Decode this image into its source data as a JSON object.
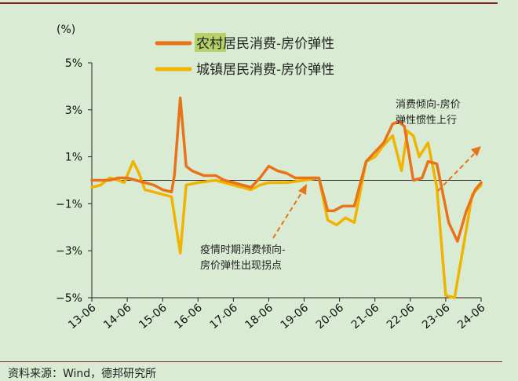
{
  "chart_data": {
    "type": "line",
    "y_unit": "(%)",
    "ylim": [
      -5,
      5
    ],
    "yticks": [
      -5,
      -3,
      -1,
      1,
      3,
      5
    ],
    "ytick_labels": [
      "−5%",
      "−3%",
      "−1%",
      "1%",
      "3%",
      "5%"
    ],
    "x_range": [
      "2013-06",
      "2024-06"
    ],
    "xtick_labels": [
      "13-06",
      "14-06",
      "15-06",
      "16-06",
      "17-06",
      "18-06",
      "19-06",
      "20-06",
      "21-06",
      "22-06",
      "23-06",
      "24-06"
    ],
    "grid": false,
    "legend_position": "top",
    "series": [
      {
        "name_highlight": "农村",
        "name_rest": "居民消费-房价弹性",
        "color": "#e8731a",
        "points": [
          [
            "2013-06",
            0.0
          ],
          [
            "2013-12",
            0.0
          ],
          [
            "2014-03",
            0.1
          ],
          [
            "2014-06",
            0.1
          ],
          [
            "2014-09",
            0.0
          ],
          [
            "2014-12",
            -0.1
          ],
          [
            "2015-03",
            -0.2
          ],
          [
            "2015-06",
            -0.4
          ],
          [
            "2015-09",
            -0.5
          ],
          [
            "2015-10",
            0.2
          ],
          [
            "2015-12",
            3.5
          ],
          [
            "2016-02",
            0.6
          ],
          [
            "2016-04",
            0.4
          ],
          [
            "2016-08",
            0.2
          ],
          [
            "2016-12",
            0.2
          ],
          [
            "2017-03",
            0.0
          ],
          [
            "2017-06",
            -0.1
          ],
          [
            "2017-12",
            -0.3
          ],
          [
            "2018-03",
            0.1
          ],
          [
            "2018-06",
            0.6
          ],
          [
            "2018-09",
            0.4
          ],
          [
            "2018-12",
            0.3
          ],
          [
            "2019-03",
            0.1
          ],
          [
            "2019-09",
            0.1
          ],
          [
            "2019-11",
            0.1
          ],
          [
            "2020-02",
            -1.3
          ],
          [
            "2020-04",
            -1.3
          ],
          [
            "2020-07",
            -1.1
          ],
          [
            "2020-11",
            -1.1
          ],
          [
            "2021-03",
            0.8
          ],
          [
            "2021-06",
            1.2
          ],
          [
            "2021-09",
            1.6
          ],
          [
            "2021-12",
            2.4
          ],
          [
            "2022-02",
            2.5
          ],
          [
            "2022-04",
            2.3
          ],
          [
            "2022-07",
            0.0
          ],
          [
            "2022-10",
            0.1
          ],
          [
            "2022-12",
            0.8
          ],
          [
            "2023-03",
            0.7
          ],
          [
            "2023-07",
            -1.8
          ],
          [
            "2023-10",
            -2.6
          ],
          [
            "2024-01",
            -1.3
          ],
          [
            "2024-04",
            -0.4
          ],
          [
            "2024-06",
            -0.1
          ]
        ]
      },
      {
        "name": "城镇居民消费-房价弹性",
        "color": "#f0b400",
        "points": [
          [
            "2013-06",
            -0.3
          ],
          [
            "2013-09",
            -0.2
          ],
          [
            "2013-12",
            0.1
          ],
          [
            "2014-03",
            0.0
          ],
          [
            "2014-05",
            -0.1
          ],
          [
            "2014-08",
            0.8
          ],
          [
            "2014-10",
            0.3
          ],
          [
            "2014-12",
            -0.4
          ],
          [
            "2015-03",
            -0.5
          ],
          [
            "2015-06",
            -0.6
          ],
          [
            "2015-09",
            -0.7
          ],
          [
            "2015-12",
            -3.1
          ],
          [
            "2016-02",
            -0.2
          ],
          [
            "2016-06",
            -0.1
          ],
          [
            "2016-12",
            0.0
          ],
          [
            "2017-06",
            -0.2
          ],
          [
            "2017-12",
            -0.4
          ],
          [
            "2018-03",
            -0.2
          ],
          [
            "2018-06",
            -0.1
          ],
          [
            "2018-12",
            -0.1
          ],
          [
            "2019-06",
            0.0
          ],
          [
            "2019-11",
            0.1
          ],
          [
            "2020-02",
            -1.7
          ],
          [
            "2020-05",
            -1.9
          ],
          [
            "2020-08",
            -1.6
          ],
          [
            "2020-11",
            -1.8
          ],
          [
            "2021-03",
            0.8
          ],
          [
            "2021-06",
            1.0
          ],
          [
            "2021-09",
            1.5
          ],
          [
            "2021-12",
            1.9
          ],
          [
            "2022-03",
            0.4
          ],
          [
            "2022-05",
            2.1
          ],
          [
            "2022-07",
            1.9
          ],
          [
            "2022-09",
            1.0
          ],
          [
            "2022-12",
            1.6
          ],
          [
            "2023-03",
            -0.3
          ],
          [
            "2023-06",
            -4.9
          ],
          [
            "2023-09",
            -5.0
          ],
          [
            "2023-12",
            -2.8
          ],
          [
            "2024-03",
            -0.6
          ],
          [
            "2024-06",
            -0.2
          ]
        ]
      }
    ],
    "annotations": [
      {
        "lines": [
          "消费倾向-房价",
          "弹性惯性上行"
        ]
      },
      {
        "lines": [
          "疫情时期消费倾向-",
          "房价弹性出现拐点"
        ]
      }
    ]
  },
  "source": "资料来源：Wind，德邦研究所"
}
